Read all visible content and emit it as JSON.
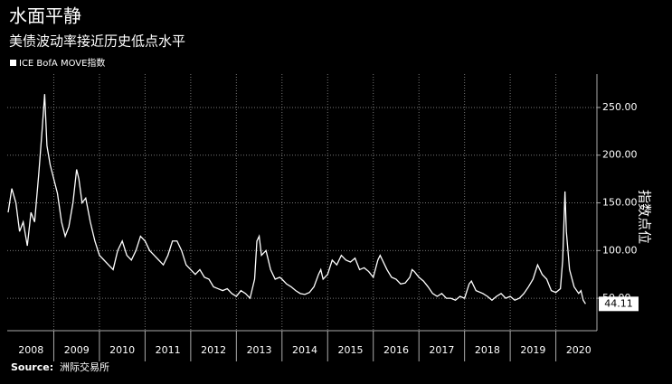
{
  "chart_data": {
    "type": "line",
    "title": "水面平静",
    "subtitle": "美债波动率接近历史低点水平",
    "y_axis_label": "指数点位",
    "source_label": "Source:",
    "source": "洲际交易所",
    "legend": "top-left",
    "grid": true,
    "xlim": [
      2007.98,
      2020.9
    ],
    "xticks": [
      {
        "value": 2008.5,
        "label": "2008"
      },
      {
        "value": 2009.5,
        "label": "2009"
      },
      {
        "value": 2010.5,
        "label": "2010"
      },
      {
        "value": 2011.5,
        "label": "2011"
      },
      {
        "value": 2012.5,
        "label": "2012"
      },
      {
        "value": 2013.5,
        "label": "2013"
      },
      {
        "value": 2014.5,
        "label": "2014"
      },
      {
        "value": 2015.5,
        "label": "2015"
      },
      {
        "value": 2016.5,
        "label": "2016"
      },
      {
        "value": 2017.5,
        "label": "2017"
      },
      {
        "value": 2018.5,
        "label": "2018"
      },
      {
        "value": 2019.5,
        "label": "2019"
      },
      {
        "value": 2020.5,
        "label": "2020"
      }
    ],
    "ylim": [
      16,
      285
    ],
    "yticks": [
      {
        "value": 50,
        "label": "50.00"
      },
      {
        "value": 100,
        "label": "100.00"
      },
      {
        "value": 150,
        "label": "150.00"
      },
      {
        "value": 200,
        "label": "200.00"
      },
      {
        "value": 250,
        "label": "250.00"
      }
    ],
    "x": [
      2008.0,
      2008.08,
      2008.17,
      2008.25,
      2008.33,
      2008.42,
      2008.5,
      2008.58,
      2008.67,
      2008.75,
      2008.8,
      2008.85,
      2008.92,
      2009.0,
      2009.08,
      2009.17,
      2009.25,
      2009.33,
      2009.42,
      2009.5,
      2009.55,
      2009.62,
      2009.7,
      2009.8,
      2009.9,
      2010.0,
      2010.1,
      2010.2,
      2010.3,
      2010.4,
      2010.5,
      2010.6,
      2010.7,
      2010.8,
      2010.9,
      2011.0,
      2011.1,
      2011.2,
      2011.3,
      2011.4,
      2011.5,
      2011.6,
      2011.7,
      2011.8,
      2011.9,
      2012.0,
      2012.1,
      2012.2,
      2012.3,
      2012.4,
      2012.5,
      2012.6,
      2012.7,
      2012.8,
      2012.9,
      2013.0,
      2013.1,
      2013.2,
      2013.3,
      2013.4,
      2013.45,
      2013.5,
      2013.55,
      2013.65,
      2013.75,
      2013.85,
      2013.95,
      2014.0,
      2014.1,
      2014.2,
      2014.3,
      2014.4,
      2014.5,
      2014.6,
      2014.7,
      2014.8,
      2014.85,
      2014.9,
      2015.0,
      2015.1,
      2015.2,
      2015.3,
      2015.4,
      2015.5,
      2015.6,
      2015.7,
      2015.8,
      2015.9,
      2016.0,
      2016.1,
      2016.15,
      2016.3,
      2016.4,
      2016.5,
      2016.6,
      2016.7,
      2016.8,
      2016.85,
      2016.9,
      2017.0,
      2017.1,
      2017.2,
      2017.3,
      2017.4,
      2017.5,
      2017.6,
      2017.7,
      2017.8,
      2017.9,
      2018.0,
      2018.1,
      2018.15,
      2018.25,
      2018.4,
      2018.5,
      2018.6,
      2018.7,
      2018.8,
      2018.9,
      2019.0,
      2019.1,
      2019.2,
      2019.3,
      2019.4,
      2019.5,
      2019.6,
      2019.7,
      2019.8,
      2019.9,
      2020.0,
      2020.1,
      2020.15,
      2020.2,
      2020.23,
      2020.3,
      2020.4,
      2020.5,
      2020.55,
      2020.6,
      2020.65
    ],
    "series": [
      {
        "name": "ICE BofA MOVE指数",
        "color": "#ffffff",
        "values": [
          140,
          165,
          150,
          120,
          130,
          105,
          140,
          130,
          180,
          230,
          264,
          210,
          190,
          175,
          160,
          130,
          115,
          125,
          150,
          185,
          175,
          150,
          155,
          130,
          110,
          95,
          90,
          85,
          80,
          100,
          110,
          95,
          90,
          100,
          115,
          110,
          100,
          95,
          90,
          85,
          95,
          110,
          110,
          100,
          85,
          80,
          75,
          80,
          72,
          70,
          62,
          60,
          58,
          60,
          55,
          52,
          58,
          55,
          50,
          70,
          110,
          115,
          95,
          100,
          80,
          70,
          72,
          70,
          65,
          62,
          58,
          55,
          54,
          56,
          62,
          75,
          80,
          70,
          75,
          90,
          85,
          95,
          90,
          88,
          92,
          80,
          82,
          78,
          72,
          90,
          95,
          80,
          72,
          70,
          65,
          66,
          72,
          80,
          78,
          72,
          68,
          62,
          55,
          52,
          55,
          50,
          50,
          48,
          52,
          50,
          65,
          68,
          58,
          55,
          52,
          48,
          52,
          55,
          50,
          52,
          48,
          50,
          55,
          62,
          70,
          85,
          75,
          70,
          58,
          56,
          60,
          90,
          162,
          120,
          80,
          62,
          55,
          58,
          48,
          44.11
        ]
      }
    ]
  }
}
